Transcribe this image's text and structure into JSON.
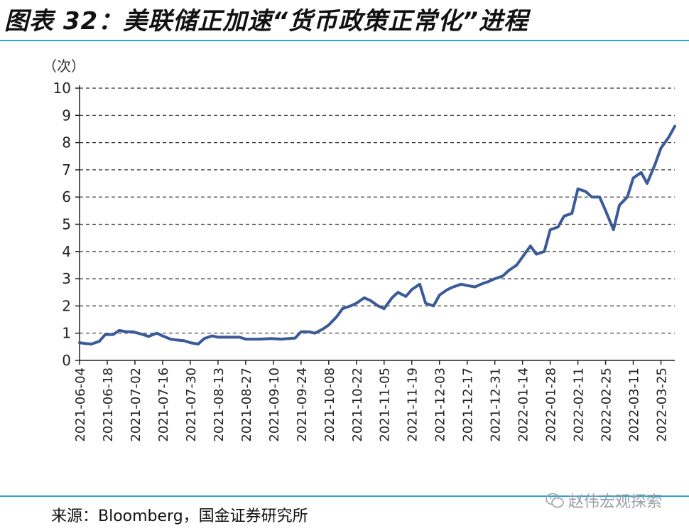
{
  "figure": {
    "title": "图表 32：美联储正加速“货币政策正常化”进程",
    "source": "来源：Bloomberg，国金证券研究所",
    "watermark": "赵伟宏观探索"
  },
  "colors": {
    "line": "#3a5a99",
    "rule": "#2aa6d6",
    "grid": "#333333"
  },
  "chart_data": {
    "type": "line",
    "unit_label": "（次）",
    "ylim": [
      0,
      10
    ],
    "yticks": [
      0,
      1,
      2,
      3,
      4,
      5,
      6,
      7,
      8,
      9,
      10
    ],
    "grid": "horizontal dashed",
    "x_ticks": [
      "2021-06-04",
      "2021-06-18",
      "2021-07-02",
      "2021-07-16",
      "2021-07-30",
      "2021-08-13",
      "2021-08-27",
      "2021-09-10",
      "2021-09-24",
      "2021-10-08",
      "2021-10-22",
      "2021-11-05",
      "2021-11-19",
      "2021-12-03",
      "2021-12-17",
      "2021-12-31",
      "2022-01-14",
      "2022-01-28",
      "2022-02-11",
      "2022-02-25",
      "2022-03-11",
      "2022-03-25"
    ],
    "xlim": [
      "2021-06-04",
      "2022-04-01"
    ],
    "series": [
      {
        "x": [
          "2021-06-04",
          "2021-06-07",
          "2021-06-10",
          "2021-06-14",
          "2021-06-17",
          "2021-06-21",
          "2021-06-24",
          "2021-06-28",
          "2021-07-01",
          "2021-07-06",
          "2021-07-09",
          "2021-07-13",
          "2021-07-16",
          "2021-07-20",
          "2021-07-23",
          "2021-07-27",
          "2021-07-30",
          "2021-08-03",
          "2021-08-06",
          "2021-08-10",
          "2021-08-13",
          "2021-08-17",
          "2021-08-20",
          "2021-08-24",
          "2021-08-27",
          "2021-08-31",
          "2021-09-03",
          "2021-09-08",
          "2021-09-10",
          "2021-09-14",
          "2021-09-17",
          "2021-09-21",
          "2021-09-24",
          "2021-09-28",
          "2021-10-01",
          "2021-10-05",
          "2021-10-08",
          "2021-10-12",
          "2021-10-15",
          "2021-10-19",
          "2021-10-22",
          "2021-10-26",
          "2021-10-29",
          "2021-11-02",
          "2021-11-05",
          "2021-11-09",
          "2021-11-12",
          "2021-11-16",
          "2021-11-19",
          "2021-11-23",
          "2021-11-26",
          "2021-11-30",
          "2021-12-03",
          "2021-12-07",
          "2021-12-10",
          "2021-12-14",
          "2021-12-17",
          "2021-12-21",
          "2021-12-24",
          "2021-12-28",
          "2021-12-31",
          "2022-01-04",
          "2022-01-07",
          "2022-01-11",
          "2022-01-14",
          "2022-01-18",
          "2022-01-21",
          "2022-01-25",
          "2022-01-28",
          "2022-02-01",
          "2022-02-04",
          "2022-02-08",
          "2022-02-11",
          "2022-02-15",
          "2022-02-18",
          "2022-02-22",
          "2022-02-25",
          "2022-03-01",
          "2022-03-04",
          "2022-03-08",
          "2022-03-11",
          "2022-03-15",
          "2022-03-18",
          "2022-03-22",
          "2022-03-25",
          "2022-03-29",
          "2022-04-01"
        ],
        "y": [
          0.65,
          0.62,
          0.6,
          0.7,
          0.95,
          0.95,
          1.1,
          1.05,
          1.05,
          0.95,
          0.88,
          1.0,
          0.9,
          0.78,
          0.75,
          0.72,
          0.65,
          0.6,
          0.8,
          0.9,
          0.85,
          0.85,
          0.85,
          0.85,
          0.78,
          0.78,
          0.78,
          0.8,
          0.8,
          0.78,
          0.8,
          0.82,
          1.05,
          1.05,
          1.0,
          1.15,
          1.3,
          1.6,
          1.9,
          2.0,
          2.1,
          2.3,
          2.2,
          2.0,
          1.9,
          2.3,
          2.5,
          2.35,
          2.6,
          2.8,
          2.1,
          2.0,
          2.4,
          2.6,
          2.7,
          2.8,
          2.75,
          2.7,
          2.8,
          2.9,
          3.0,
          3.1,
          3.3,
          3.5,
          3.8,
          4.2,
          3.9,
          4.0,
          4.8,
          4.9,
          5.3,
          5.4,
          6.3,
          6.2,
          6.0,
          6.0,
          5.5,
          4.8,
          5.7,
          6.0,
          6.7,
          6.9,
          6.5,
          7.2,
          7.8,
          8.2,
          8.6
        ]
      }
    ]
  }
}
